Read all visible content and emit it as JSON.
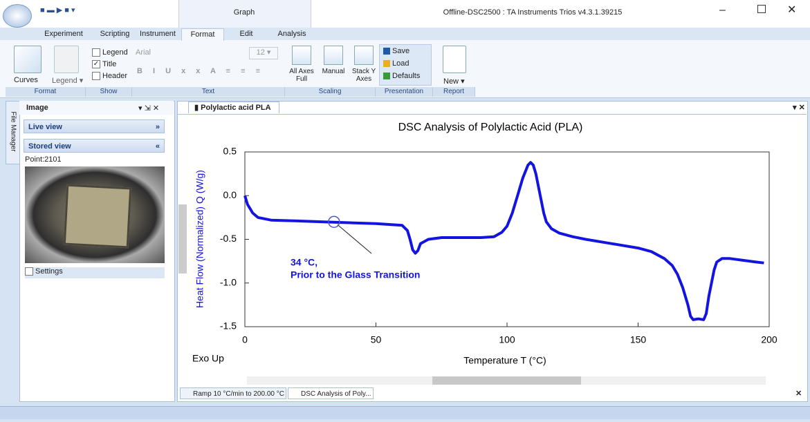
{
  "window": {
    "title": "Offline-DSC2500 : TA Instruments Trios v4.3.1.39215",
    "context_tab": "Graph",
    "tabs": [
      "Experiment",
      "Scripting",
      "Instrument",
      "Format",
      "Edit",
      "Analysis"
    ]
  },
  "ribbon": {
    "format_group": {
      "label": "Format",
      "buttons": [
        "Curves",
        "Legend"
      ]
    },
    "show_group": {
      "label": "Show",
      "items": [
        {
          "label": "Legend",
          "checked": false
        },
        {
          "label": "Title",
          "checked": true
        },
        {
          "label": "Header",
          "checked": false
        }
      ]
    },
    "text_group": {
      "label": "Text",
      "font": "Arial",
      "size": "12"
    },
    "scaling_group": {
      "label": "Scaling",
      "buttons": [
        "All Axes Full",
        "Manual",
        "Stack Y Axes"
      ]
    },
    "presentation_group": {
      "label": "Presentation",
      "buttons": [
        "Save",
        "Load",
        "Defaults"
      ]
    },
    "report_group": {
      "label": "Report",
      "buttons": [
        "New"
      ]
    }
  },
  "side_panel": {
    "vertical_tab": "File Manager",
    "title": "Image",
    "sections": [
      "Live view",
      "Stored view"
    ],
    "point": "Point:2101",
    "settings": "Settings"
  },
  "document": {
    "tab": "Polylactic acid PLA",
    "bottom_tabs": [
      "Ramp 10 °C/min to 200.00 °C",
      "DSC Analysis of Poly..."
    ]
  },
  "chart_data": {
    "type": "line",
    "title": "DSC Analysis of Polylactic Acid (PLA)",
    "xlabel": "Temperature  T (°C)",
    "ylabel": "Heat Flow (Normalized)  Q (W/g)",
    "corner_note": "Exo Up",
    "color": "#1414e0",
    "x": [
      0,
      1,
      3,
      5,
      10,
      20,
      30,
      40,
      50,
      55,
      60,
      62,
      63,
      64,
      65,
      66,
      67,
      70,
      75,
      80,
      90,
      95,
      98,
      100,
      102,
      104,
      106,
      108,
      109,
      110,
      111,
      112,
      113,
      114,
      115,
      117,
      120,
      125,
      130,
      140,
      150,
      155,
      160,
      163,
      165,
      167,
      169,
      170,
      171,
      173,
      175,
      176,
      177,
      178,
      179,
      180,
      182,
      185,
      190,
      195,
      198
    ],
    "values": [
      0.0,
      -0.1,
      -0.2,
      -0.25,
      -0.28,
      -0.29,
      -0.3,
      -0.31,
      -0.32,
      -0.33,
      -0.34,
      -0.4,
      -0.5,
      -0.62,
      -0.66,
      -0.63,
      -0.55,
      -0.5,
      -0.48,
      -0.48,
      -0.48,
      -0.47,
      -0.42,
      -0.35,
      -0.2,
      0.0,
      0.2,
      0.35,
      0.38,
      0.35,
      0.25,
      0.1,
      -0.05,
      -0.2,
      -0.3,
      -0.38,
      -0.43,
      -0.47,
      -0.5,
      -0.55,
      -0.6,
      -0.64,
      -0.72,
      -0.8,
      -0.9,
      -1.05,
      -1.25,
      -1.38,
      -1.42,
      -1.41,
      -1.42,
      -1.35,
      -1.15,
      -1.0,
      -0.85,
      -0.76,
      -0.72,
      -0.72,
      -0.74,
      -0.76,
      -0.77
    ],
    "xlim": [
      0,
      200
    ],
    "ylim": [
      -1.5,
      0.5
    ],
    "xticks": [
      0,
      50,
      100,
      150,
      200
    ],
    "yticks": [
      0.5,
      {
        "value": 0,
        "label": "0.0"
      },
      -0.5,
      {
        "value": -1,
        "label": "-1.0"
      },
      -1.5
    ],
    "annotation": {
      "lines": [
        "34 °C,",
        "Prior to the Glass Transition"
      ],
      "x": 34,
      "y": -0.3
    }
  }
}
